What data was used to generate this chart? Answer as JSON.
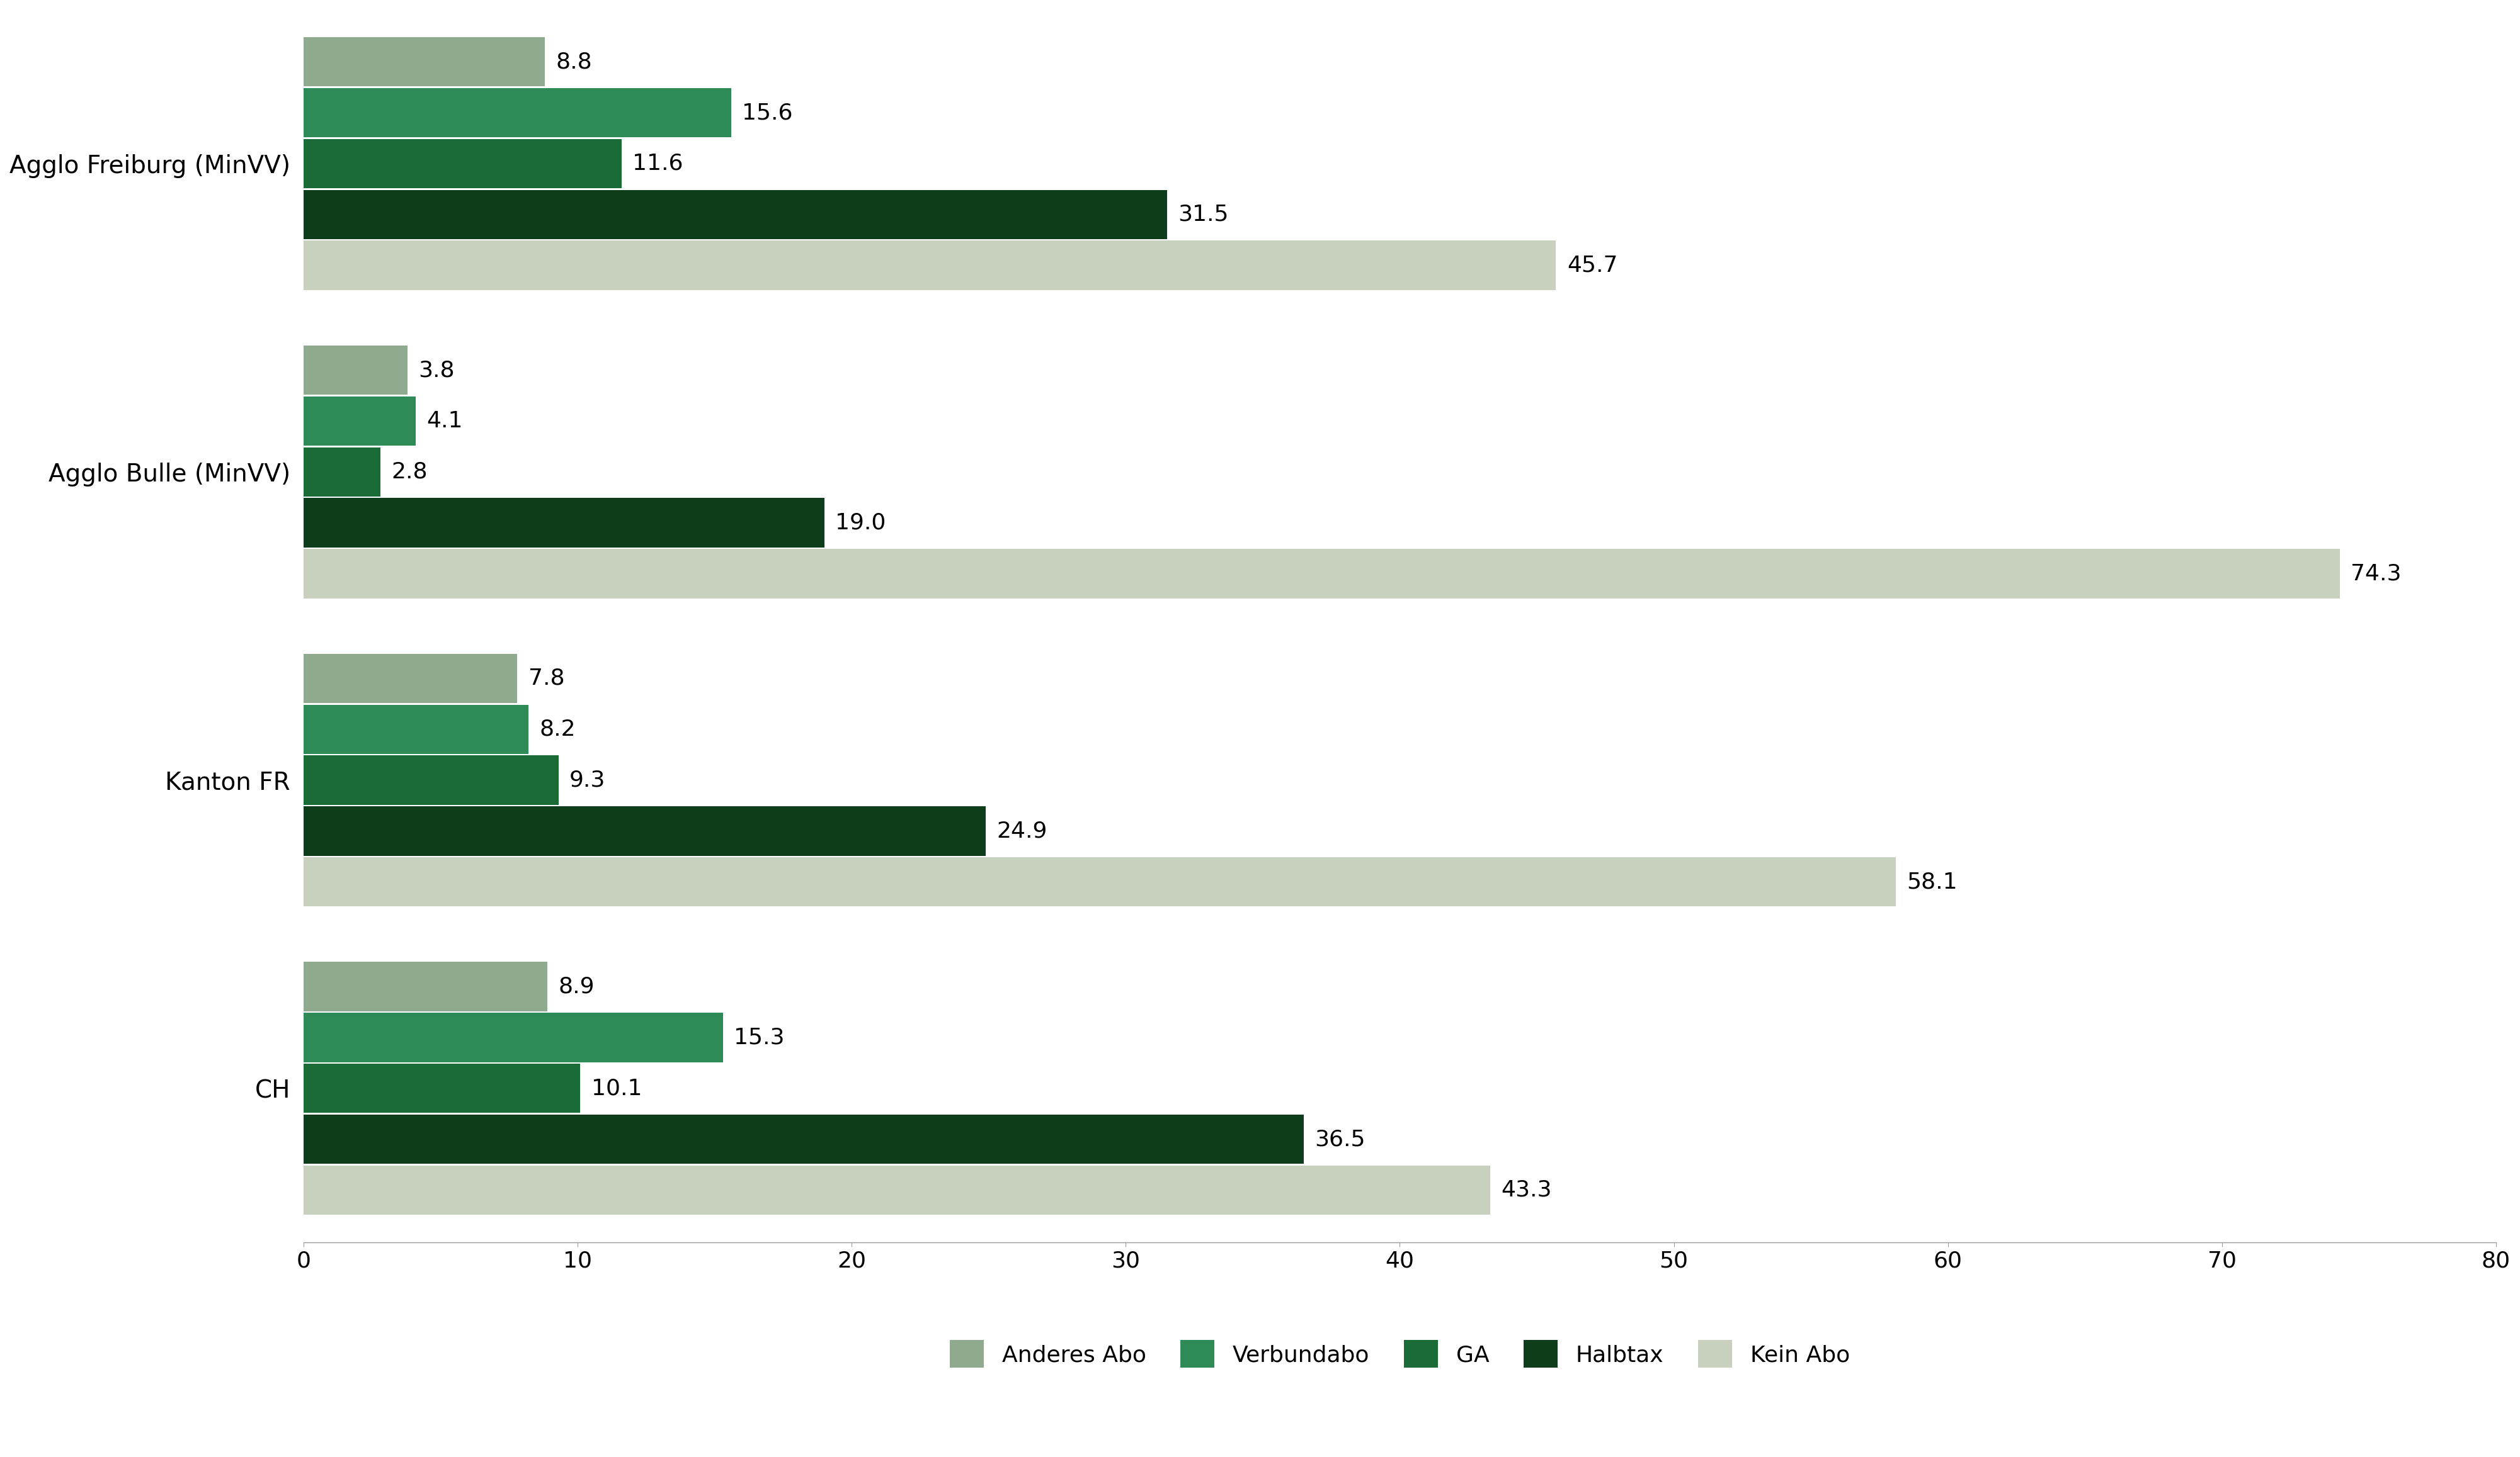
{
  "categories": [
    "Agglo Freiburg (MinVV)",
    "Agglo Bulle (MinVV)",
    "Kanton FR",
    "CH"
  ],
  "series": {
    "Anderes Abo": [
      8.8,
      3.8,
      7.8,
      8.9
    ],
    "Verbundabo": [
      15.6,
      4.1,
      8.2,
      15.3
    ],
    "GA": [
      11.6,
      2.8,
      9.3,
      10.1
    ],
    "Halbtax": [
      31.5,
      19.0,
      24.9,
      36.5
    ],
    "Kein Abo": [
      45.7,
      74.3,
      58.1,
      43.3
    ]
  },
  "colors": {
    "Anderes Abo": "#8faa8f",
    "Verbundabo": "#2e8b57",
    "GA": "#1a6b35",
    "Halbtax": "#0d3d1a",
    "Kein Abo": "#c8d0be"
  },
  "xlim": [
    0,
    80
  ],
  "xticks": [
    0,
    10,
    20,
    30,
    40,
    50,
    60,
    70,
    80
  ],
  "background_color": "#ffffff",
  "bar_height": 0.16,
  "label_fontsize": 26,
  "tick_fontsize": 26,
  "legend_fontsize": 26,
  "ytick_fontsize": 28,
  "legend_labels": [
    "Anderes Abo",
    "Verbundabo",
    "GA",
    "Halbtax",
    "Kein Abo"
  ]
}
